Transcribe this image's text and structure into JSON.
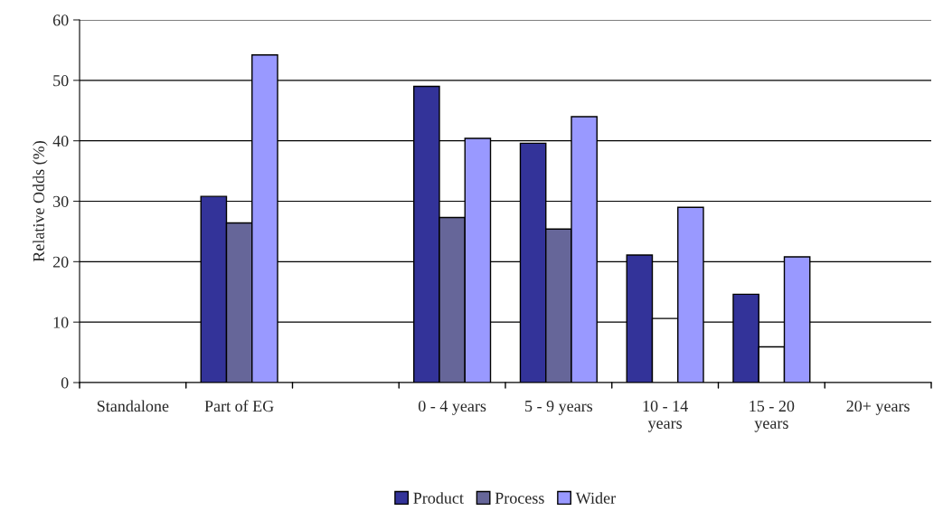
{
  "chart_data": {
    "type": "bar",
    "ylabel": "Relative Odds (%)",
    "categories": [
      "Standalone",
      "Part of EG",
      null,
      "0 - 4 years",
      "5 - 9 years",
      "10 - 14 years",
      "15 - 20 years",
      "20+ years"
    ],
    "series": [
      {
        "name": "Product",
        "color": "#333399",
        "values": [
          null,
          30.8,
          null,
          49.0,
          39.6,
          21.1,
          14.6,
          null
        ]
      },
      {
        "name": "Process",
        "color": "#666699",
        "colors": [
          "#666699",
          "#666699",
          "#666699",
          "#666699",
          "#666699",
          "#ffffff",
          "#ffffff",
          "#666699"
        ],
        "values": [
          null,
          26.4,
          null,
          27.3,
          25.4,
          10.6,
          5.9,
          null
        ]
      },
      {
        "name": "Wider",
        "color": "#9999ff",
        "values": [
          null,
          54.2,
          null,
          40.4,
          44.0,
          29.0,
          20.8,
          null
        ]
      }
    ],
    "ylim": [
      0,
      60
    ],
    "yticks": [
      0,
      10,
      20,
      30,
      40,
      50,
      60
    ],
    "grid": "y",
    "legend": "bottom"
  }
}
